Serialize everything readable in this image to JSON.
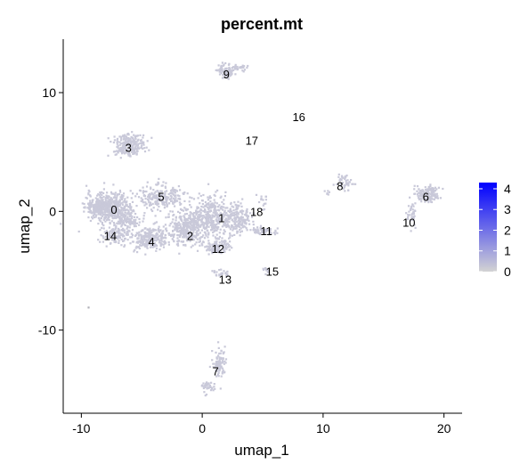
{
  "chart_data": {
    "type": "scatter",
    "title": "percent.mt",
    "xlabel": "umap_1",
    "ylabel": "umap_2",
    "xlim": [
      -11.5,
      21.5
    ],
    "ylim": [
      -17,
      14.5
    ],
    "xticks": [
      -10,
      0,
      10,
      20
    ],
    "yticks": [
      10,
      0,
      -10
    ],
    "tick_labels_x": [
      "-10",
      "0",
      "10",
      "20"
    ],
    "tick_labels_y": [
      "10",
      "0",
      "-10"
    ],
    "color_scale": {
      "low_color": "#d3d3d3",
      "high_color": "#0000ff",
      "min": 0,
      "max": 4.3,
      "ticks": [
        0,
        1,
        2,
        3,
        4
      ],
      "tick_labels": [
        "0",
        "1",
        "2",
        "3",
        "4"
      ]
    },
    "point_color": "#c9c9d9",
    "clusters": [
      {
        "label": "0",
        "x": -7.3,
        "y": 0.1
      },
      {
        "label": "1",
        "x": 1.6,
        "y": -0.6
      },
      {
        "label": "2",
        "x": -1.0,
        "y": -2.1
      },
      {
        "label": "3",
        "x": -6.1,
        "y": 5.3
      },
      {
        "label": "4",
        "x": -4.2,
        "y": -2.6
      },
      {
        "label": "5",
        "x": -3.4,
        "y": 1.2
      },
      {
        "label": "6",
        "x": 18.5,
        "y": 1.2
      },
      {
        "label": "7",
        "x": 1.1,
        "y": -13.5
      },
      {
        "label": "8",
        "x": 11.4,
        "y": 2.1
      },
      {
        "label": "9",
        "x": 2.0,
        "y": 11.5
      },
      {
        "label": "10",
        "x": 17.1,
        "y": -1.0
      },
      {
        "label": "11",
        "x": 5.3,
        "y": -1.7
      },
      {
        "label": "12",
        "x": 1.3,
        "y": -3.2
      },
      {
        "label": "13",
        "x": 1.9,
        "y": -5.8
      },
      {
        "label": "14",
        "x": -7.6,
        "y": -2.1
      },
      {
        "label": "15",
        "x": 5.8,
        "y": -5.1
      },
      {
        "label": "16",
        "x": 8.0,
        "y": 7.9
      },
      {
        "label": "17",
        "x": 4.1,
        "y": 5.9
      },
      {
        "label": "18",
        "x": 4.5,
        "y": -0.1
      }
    ]
  }
}
